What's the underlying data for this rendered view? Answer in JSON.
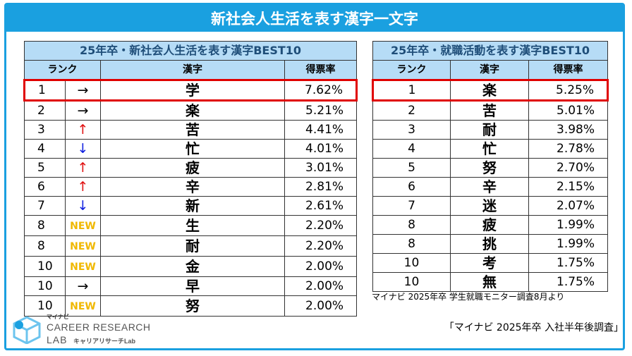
{
  "header": {
    "title": "新社会人生活を表す漢字一文字"
  },
  "left_table": {
    "title": "25年卒・新社会人生活を表す漢字BEST10",
    "columns": [
      "ランク",
      "漢字",
      "得票率"
    ],
    "rows": [
      {
        "rank": "1",
        "trend": "→",
        "trend_type": "same",
        "kanji": "学",
        "rate": "7.62%"
      },
      {
        "rank": "2",
        "trend": "→",
        "trend_type": "same",
        "kanji": "楽",
        "rate": "5.21%"
      },
      {
        "rank": "3",
        "trend": "↑",
        "trend_type": "up",
        "kanji": "苦",
        "rate": "4.41%"
      },
      {
        "rank": "4",
        "trend": "↓",
        "trend_type": "down",
        "kanji": "忙",
        "rate": "4.01%"
      },
      {
        "rank": "5",
        "trend": "↑",
        "trend_type": "up",
        "kanji": "疲",
        "rate": "3.01%"
      },
      {
        "rank": "6",
        "trend": "↑",
        "trend_type": "up",
        "kanji": "辛",
        "rate": "2.81%"
      },
      {
        "rank": "7",
        "trend": "↓",
        "trend_type": "down",
        "kanji": "新",
        "rate": "2.61%"
      },
      {
        "rank": "8",
        "trend": "NEW",
        "trend_type": "new",
        "kanji": "生",
        "rate": "2.20%"
      },
      {
        "rank": "8",
        "trend": "NEW",
        "trend_type": "new",
        "kanji": "耐",
        "rate": "2.20%"
      },
      {
        "rank": "10",
        "trend": "NEW",
        "trend_type": "new",
        "kanji": "金",
        "rate": "2.00%"
      },
      {
        "rank": "10",
        "trend": "→",
        "trend_type": "same",
        "kanji": "早",
        "rate": "2.00%"
      },
      {
        "rank": "10",
        "trend": "NEW",
        "trend_type": "new",
        "kanji": "努",
        "rate": "2.00%"
      }
    ]
  },
  "right_table": {
    "title": "25年卒・就職活動を表す漢字BEST10",
    "columns": [
      "ランク",
      "漢字",
      "得票率"
    ],
    "rows": [
      {
        "rank": "1",
        "kanji": "楽",
        "rate": "5.25%"
      },
      {
        "rank": "2",
        "kanji": "苦",
        "rate": "5.01%"
      },
      {
        "rank": "3",
        "kanji": "耐",
        "rate": "3.98%"
      },
      {
        "rank": "4",
        "kanji": "忙",
        "rate": "2.78%"
      },
      {
        "rank": "5",
        "kanji": "努",
        "rate": "2.70%"
      },
      {
        "rank": "6",
        "kanji": "辛",
        "rate": "2.15%"
      },
      {
        "rank": "7",
        "kanji": "迷",
        "rate": "2.07%"
      },
      {
        "rank": "8",
        "kanji": "疲",
        "rate": "1.99%"
      },
      {
        "rank": "8",
        "kanji": "挑",
        "rate": "1.99%"
      },
      {
        "rank": "10",
        "kanji": "考",
        "rate": "1.75%"
      },
      {
        "rank": "10",
        "kanji": "無",
        "rate": "1.75%"
      }
    ]
  },
  "source_note": "マイナビ 2025年卒 学生就職モニター調査8月より",
  "survey_name": "「マイナビ 2025年卒 入社半年後調査」",
  "logo": {
    "small": "マイナビ",
    "line1": "CAREER RESEARCH",
    "line2": "LAB",
    "line3": "キャリアリサーチLab"
  },
  "colors": {
    "accent": "#1aa0e0",
    "header_fill": "#b6dcf6",
    "highlight": "#e00000",
    "up": "#e01010",
    "down": "#1020e0",
    "new": "#f0b800"
  }
}
